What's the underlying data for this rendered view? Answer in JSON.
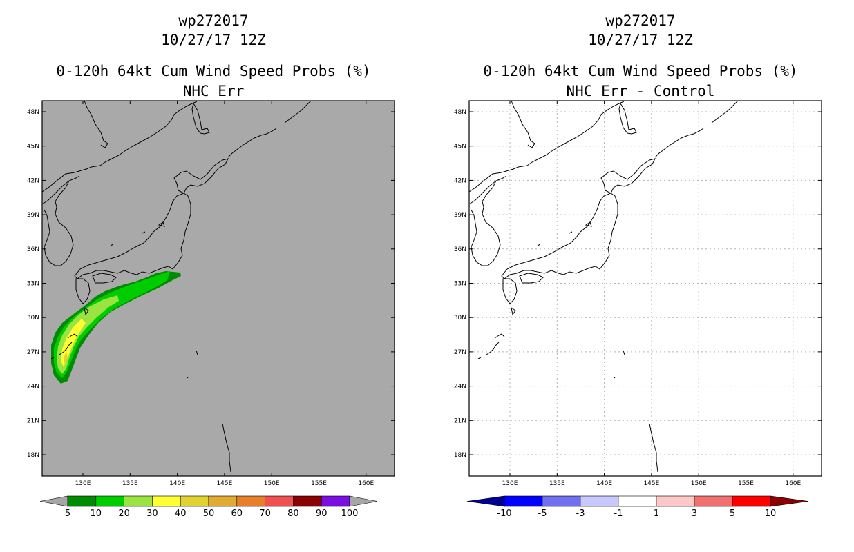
{
  "left": {
    "storm_id": "wp272017",
    "datetime": "10/27/17 12Z",
    "product": "0-120h 64kt Cum Wind Speed Probs (%)",
    "subtitle": "NHC Err",
    "colorbar": {
      "labels": [
        "5",
        "10",
        "20",
        "30",
        "40",
        "50",
        "60",
        "70",
        "80",
        "90",
        "100"
      ],
      "colors": [
        "#008c00",
        "#00cd00",
        "#9be341",
        "#ffff32",
        "#e1d232",
        "#e1aa32",
        "#e67f28",
        "#f05050",
        "#8b0000",
        "#7a10df"
      ],
      "end_color": "#a6a6a6"
    },
    "background_color": "#a9a9a9"
  },
  "right": {
    "storm_id": "wp272017",
    "datetime": "10/27/17 12Z",
    "product": "0-120h 64kt Cum Wind Speed Probs (%)",
    "subtitle": "NHC Err - Control",
    "colorbar": {
      "labels": [
        "-10",
        "-5",
        "-3",
        "-1",
        "1",
        "3",
        "5",
        "10"
      ],
      "colors": [
        "#0000ff",
        "#7070f0",
        "#c8c8ff",
        "#ffffff",
        "#ffc8c8",
        "#f07070",
        "#ff0000"
      ],
      "end_left": "#000090",
      "end_right": "#8b0000"
    },
    "background_color": "#ffffff"
  },
  "axes": {
    "lat_labels": [
      "48N",
      "45N",
      "42N",
      "39N",
      "36N",
      "33N",
      "30N",
      "27N",
      "24N",
      "21N",
      "18N"
    ],
    "lon_labels": [
      "130E",
      "135E",
      "140E",
      "145E",
      "150E",
      "155E",
      "160E"
    ]
  }
}
